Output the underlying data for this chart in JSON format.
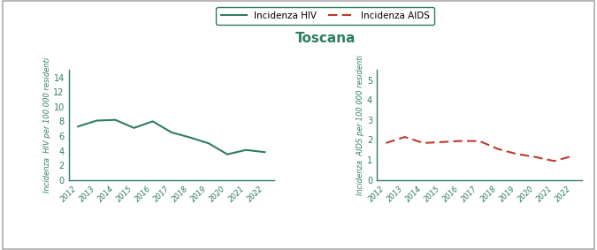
{
  "title": "Toscana",
  "title_color": "#2e7d5e",
  "years": [
    2012,
    2013,
    2014,
    2015,
    2016,
    2017,
    2018,
    2019,
    2020,
    2021,
    2022
  ],
  "hiv_values": [
    7.3,
    8.1,
    8.2,
    7.1,
    8.0,
    6.5,
    5.8,
    5.0,
    3.5,
    4.1,
    3.8
  ],
  "aids_values": [
    1.85,
    2.15,
    1.85,
    1.9,
    1.95,
    1.95,
    1.55,
    1.3,
    1.15,
    0.95,
    1.2
  ],
  "hiv_color": "#2e7d5e",
  "aids_color": "#c0392b",
  "hiv_ylabel": "Incidenza  HIV per 100.000 residenti",
  "aids_ylabel": "Incidenza  AIDS per 100.000 residenti",
  "hiv_ylim": [
    0,
    15
  ],
  "hiv_yticks": [
    0,
    2,
    4,
    6,
    8,
    10,
    12,
    14
  ],
  "aids_ylim": [
    0,
    5.5
  ],
  "aids_yticks": [
    0,
    1,
    2,
    3,
    4,
    5
  ],
  "legend_hiv_label": "Incidenza HIV",
  "legend_aids_label": "Incidenza AIDS",
  "background_color": "#ffffff",
  "border_color": "#aaaaaa",
  "axis_color": "#2e7d5e",
  "tick_label_color": "#2e7d5e",
  "ylabel_color": "#2e7d5e",
  "figsize": [
    6.75,
    2.83
  ],
  "dpi": 100
}
